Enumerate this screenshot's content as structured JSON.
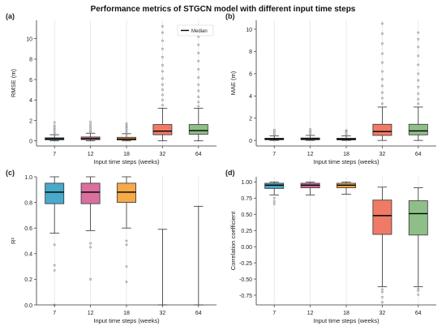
{
  "figure": {
    "title": "Performance metrics of STGCN model with different input time steps"
  },
  "chart_data": [
    {
      "type": "box",
      "panel": "(a)",
      "xlabel": "Input time steps (weeks)",
      "ylabel": "RMSE (m)",
      "categories": [
        "7",
        "12",
        "18",
        "32",
        "64"
      ],
      "ylim": [
        -0.5,
        11.8
      ],
      "yticks": [
        0,
        2,
        4,
        6,
        8,
        10
      ],
      "grid": "vertical",
      "legend": {
        "label": "Median",
        "placement": "top-right"
      },
      "colors": [
        "#4aa9c9",
        "#d970a0",
        "#f5aa4a",
        "#ef7b66",
        "#8fbf88"
      ],
      "boxes": [
        {
          "whislo": 0.0,
          "q1": 0.1,
          "med": 0.2,
          "q3": 0.3,
          "whishi": 0.6,
          "fliers": [
            0.7,
            0.9,
            1.1,
            1.3,
            1.5,
            1.8
          ]
        },
        {
          "whislo": 0.0,
          "q1": 0.12,
          "med": 0.22,
          "q3": 0.38,
          "whishi": 0.75,
          "fliers": [
            0.85,
            1.0,
            1.2,
            1.4,
            1.6,
            1.85
          ]
        },
        {
          "whislo": 0.0,
          "q1": 0.08,
          "med": 0.18,
          "q3": 0.35,
          "whishi": 0.7,
          "fliers": [
            0.8,
            1.0,
            1.2,
            1.35,
            1.5,
            1.7
          ]
        },
        {
          "whislo": 0.0,
          "q1": 0.6,
          "med": 0.95,
          "q3": 1.6,
          "whishi": 3.2,
          "fliers": [
            3.5,
            4.0,
            4.5,
            5.0,
            5.5,
            6.1,
            6.8,
            7.4,
            8.2,
            9.0,
            9.8,
            10.6,
            11.2
          ]
        },
        {
          "whislo": 0.0,
          "q1": 0.65,
          "med": 1.0,
          "q3": 1.6,
          "whishi": 3.2,
          "fliers": [
            3.4,
            3.8,
            4.3,
            4.9,
            5.5,
            6.2,
            7.0,
            7.8,
            8.6,
            9.4,
            10.2,
            11.0
          ]
        }
      ]
    },
    {
      "type": "box",
      "panel": "(b)",
      "xlabel": "Input time steps (weeks)",
      "ylabel": "MAE (m)",
      "categories": [
        "7",
        "12",
        "18",
        "32",
        "64"
      ],
      "ylim": [
        -0.5,
        10.8
      ],
      "yticks": [
        0,
        2,
        4,
        6,
        8,
        10
      ],
      "grid": "vertical",
      "colors": [
        "#4aa9c9",
        "#d970a0",
        "#f5aa4a",
        "#ef7b66",
        "#8fbf88"
      ],
      "boxes": [
        {
          "whislo": 0.0,
          "q1": 0.06,
          "med": 0.12,
          "q3": 0.2,
          "whishi": 0.4,
          "fliers": [
            0.5,
            0.65,
            0.8,
            0.95
          ]
        },
        {
          "whislo": 0.0,
          "q1": 0.06,
          "med": 0.13,
          "q3": 0.22,
          "whishi": 0.45,
          "fliers": [
            0.55,
            0.7,
            0.85,
            1.0
          ]
        },
        {
          "whislo": 0.0,
          "q1": 0.05,
          "med": 0.11,
          "q3": 0.2,
          "whishi": 0.4,
          "fliers": [
            0.5,
            0.65,
            0.8,
            0.9
          ]
        },
        {
          "whislo": 0.0,
          "q1": 0.45,
          "med": 0.8,
          "q3": 1.45,
          "whishi": 3.0,
          "fliers": [
            3.3,
            3.8,
            4.3,
            4.9,
            5.5,
            6.2,
            7.0,
            7.8,
            8.7,
            9.6,
            10.5
          ]
        },
        {
          "whislo": 0.0,
          "q1": 0.5,
          "med": 0.85,
          "q3": 1.45,
          "whishi": 3.0,
          "fliers": [
            3.3,
            3.7,
            4.2,
            4.8,
            5.4,
            6.0,
            6.8,
            7.6,
            8.4,
            9.1,
            9.7
          ]
        }
      ]
    },
    {
      "type": "box",
      "panel": "(c)",
      "xlabel": "Input time steps (weeks)",
      "ylabel": "R²",
      "categories": [
        "7",
        "12",
        "18",
        "32",
        "64"
      ],
      "ylim": [
        0.0,
        1.0
      ],
      "yticks": [
        0.0,
        0.2,
        0.4,
        0.6,
        0.8,
        1.0
      ],
      "grid": "vertical",
      "colors": [
        "#4aa9c9",
        "#d970a0",
        "#f5aa4a",
        "#ef7b66",
        "#8fbf88"
      ],
      "boxes": [
        {
          "whislo": 0.56,
          "q1": 0.79,
          "med": 0.88,
          "q3": 0.95,
          "whishi": 1.0,
          "fliers": [
            0.47,
            0.31,
            0.27,
            0.0
          ]
        },
        {
          "whislo": 0.58,
          "q1": 0.79,
          "med": 0.88,
          "q3": 0.95,
          "whishi": 1.0,
          "fliers": [
            0.48,
            0.45,
            0.2
          ]
        },
        {
          "whislo": 0.6,
          "q1": 0.8,
          "med": 0.88,
          "q3": 0.95,
          "whishi": 1.0,
          "fliers": [
            0.5,
            0.47,
            0.3,
            0.18
          ]
        },
        {
          "whislo": 0.0,
          "q1": null,
          "med": null,
          "q3": null,
          "whishi": 0.59,
          "fliers": []
        },
        {
          "whislo": 0.0,
          "q1": null,
          "med": null,
          "q3": null,
          "whishi": 0.77,
          "fliers": []
        }
      ]
    },
    {
      "type": "box",
      "panel": "(d)",
      "xlabel": "Input time steps (weeks)",
      "ylabel": "Correlation coefficient",
      "categories": [
        "7",
        "12",
        "18",
        "32",
        "64"
      ],
      "ylim": [
        -0.9,
        1.08
      ],
      "yticks": [
        -0.75,
        -0.5,
        -0.25,
        0.0,
        0.25,
        0.5,
        0.75,
        1.0
      ],
      "grid": "vertical",
      "colors": [
        "#4aa9c9",
        "#d970a0",
        "#f5aa4a",
        "#ef7b66",
        "#8fbf88"
      ],
      "boxes": [
        {
          "whislo": 0.8,
          "q1": 0.9,
          "med": 0.95,
          "q3": 0.98,
          "whishi": 1.0,
          "fliers": [
            0.75,
            0.7,
            0.66
          ]
        },
        {
          "whislo": 0.8,
          "q1": 0.91,
          "med": 0.95,
          "q3": 0.98,
          "whishi": 1.0,
          "fliers": []
        },
        {
          "whislo": 0.81,
          "q1": 0.91,
          "med": 0.95,
          "q3": 0.98,
          "whishi": 1.0,
          "fliers": []
        },
        {
          "whislo": -0.62,
          "q1": 0.19,
          "med": 0.48,
          "q3": 0.72,
          "whishi": 0.92,
          "fliers": [
            -0.66,
            -0.7,
            -0.78,
            -0.86
          ]
        },
        {
          "whislo": -0.62,
          "q1": 0.18,
          "med": 0.51,
          "q3": 0.71,
          "whishi": 0.91,
          "fliers": [
            -0.65,
            -0.68,
            -0.74
          ]
        }
      ]
    }
  ]
}
